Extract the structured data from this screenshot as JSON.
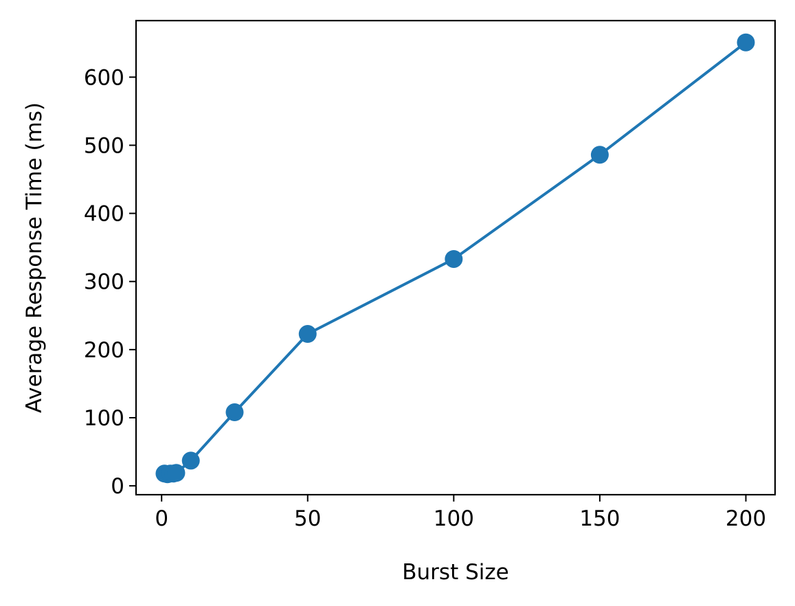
{
  "chart_data": {
    "type": "line",
    "title": "",
    "xlabel": "Burst Size",
    "ylabel": "Average Response Time (ms)",
    "xlim": [
      -8.75,
      210
    ],
    "ylim": [
      -13,
      683
    ],
    "xticks": [
      0,
      50,
      100,
      150,
      200
    ],
    "yticks": [
      0,
      100,
      200,
      300,
      400,
      500,
      600
    ],
    "grid": false,
    "legend": "none",
    "series": [
      {
        "color": "#1f77b4",
        "x": [
          1,
          2,
          3,
          4,
          5,
          10,
          25,
          50,
          100,
          150,
          200
        ],
        "y": [
          18,
          17,
          18,
          18,
          19,
          37,
          108,
          223,
          333,
          486,
          651
        ]
      }
    ]
  }
}
